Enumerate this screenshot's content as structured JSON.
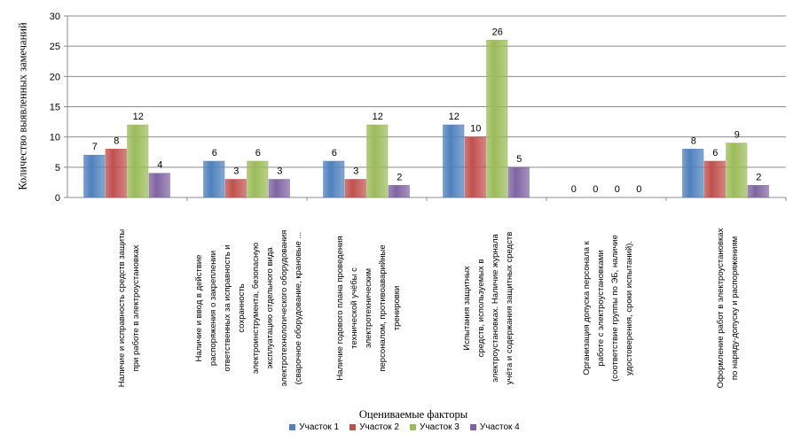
{
  "chart_data": {
    "type": "bar",
    "ylabel": "Количество выявленных замечаний",
    "xlabel": "Оцениваемые факторы",
    "ylim": [
      0,
      30
    ],
    "yticks": [
      0,
      5,
      10,
      15,
      20,
      25,
      30
    ],
    "grid": true,
    "legend_placement": "bottom",
    "categories": [
      [
        "Наличие и исправность средств защиты",
        "при работе в электроустановках"
      ],
      [
        "Наличие и ввод в действие",
        "распоряжения о закреплении",
        "ответственных за исправность и",
        "сохранность",
        "электроинструмента,  безопасную",
        "эксплуатацию отдельного вида",
        "электротехнологического оборудования",
        "(сварочное оборудование, крановые ..."
      ],
      [
        "Наличие годового плана проведения",
        "технической учёбы с",
        "электротехническим",
        "персоналом, противоаварийные",
        "тренировки"
      ],
      [
        "Испытания  защитных",
        "средств, используемых в",
        "электроустановках. Наличие журнала",
        "учёта и содержания защитных средств"
      ],
      [
        "Организация допуска персонала к",
        "работе с электроустановками",
        "(соответствие группы по ЭБ, наличие",
        "удостоверения, сроки испытаний)."
      ],
      [
        "Оформление работ в электроустановках",
        "по наряду-допуску  и распоряжениям"
      ]
    ],
    "series": [
      {
        "name": "Участок 1",
        "color": "#4f81bd",
        "values": [
          7,
          6,
          6,
          12,
          0,
          8
        ]
      },
      {
        "name": "Участок 2",
        "color": "#c0504d",
        "values": [
          8,
          3,
          3,
          10,
          0,
          6
        ]
      },
      {
        "name": "Участок 3",
        "color": "#9bbb59",
        "values": [
          12,
          6,
          12,
          26,
          0,
          9
        ]
      },
      {
        "name": "Участок 4",
        "color": "#8064a2",
        "values": [
          4,
          3,
          2,
          5,
          0,
          2
        ]
      }
    ]
  }
}
